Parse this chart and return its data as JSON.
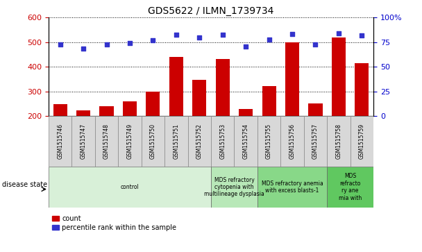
{
  "title": "GDS5622 / ILMN_1739734",
  "samples": [
    "GSM1515746",
    "GSM1515747",
    "GSM1515748",
    "GSM1515749",
    "GSM1515750",
    "GSM1515751",
    "GSM1515752",
    "GSM1515753",
    "GSM1515754",
    "GSM1515755",
    "GSM1515756",
    "GSM1515757",
    "GSM1515758",
    "GSM1515759"
  ],
  "counts": [
    248,
    222,
    240,
    260,
    298,
    440,
    348,
    432,
    228,
    322,
    500,
    250,
    520,
    415
  ],
  "percentiles": [
    490,
    475,
    490,
    498,
    508,
    530,
    520,
    530,
    482,
    510,
    533,
    492,
    537,
    527
  ],
  "ylim_left": [
    200,
    600
  ],
  "ylim_right": [
    0,
    100
  ],
  "yticks_left": [
    200,
    300,
    400,
    500,
    600
  ],
  "yticks_right": [
    0,
    25,
    50,
    75,
    100
  ],
  "bar_color": "#cc0000",
  "dot_color": "#3333cc",
  "bar_bottom": 200,
  "disease_groups": [
    {
      "label": "control",
      "start": 0,
      "end": 7,
      "color": "#d8f0d8"
    },
    {
      "label": "MDS refractory\ncytopenia with\nmultilineage dysplasia",
      "start": 7,
      "end": 9,
      "color": "#b8e8b8"
    },
    {
      "label": "MDS refractory anemia\nwith excess blasts-1",
      "start": 9,
      "end": 12,
      "color": "#88d888"
    },
    {
      "label": "MDS\nrefracto\nry ane\nmia with",
      "start": 12,
      "end": 14,
      "color": "#60c860"
    }
  ],
  "tick_label_color_left": "#cc0000",
  "tick_label_color_right": "#0000cc",
  "disease_state_label": "disease state",
  "legend_count_label": "count",
  "legend_pct_label": "percentile rank within the sample"
}
